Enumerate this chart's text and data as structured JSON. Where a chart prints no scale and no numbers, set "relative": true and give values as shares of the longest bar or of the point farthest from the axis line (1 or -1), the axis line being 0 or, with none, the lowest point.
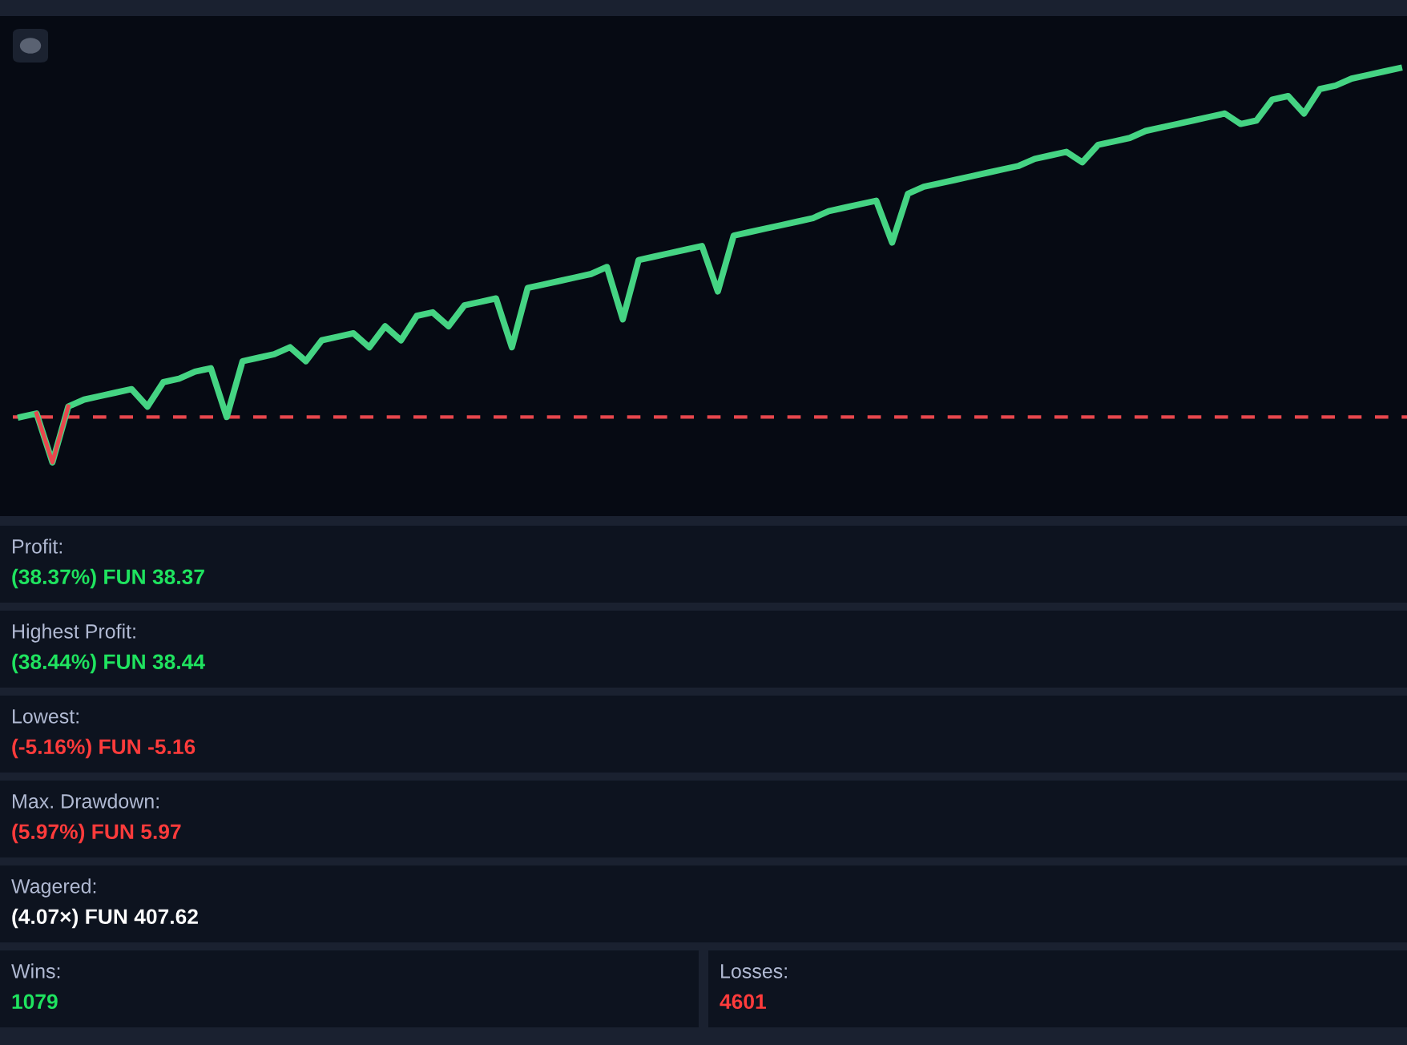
{
  "chart_data": [
    {
      "type": "line",
      "relative": true,
      "categories": [
        null,
        null,
        null,
        null,
        null,
        null,
        null,
        null,
        null,
        null,
        null,
        null,
        null,
        null,
        null,
        null,
        null,
        null,
        null,
        null,
        null,
        null,
        null,
        null,
        null,
        null,
        null,
        null,
        null,
        null,
        null,
        null,
        null,
        null,
        null,
        null,
        null,
        null,
        null,
        null,
        null,
        null,
        null,
        null,
        null,
        null,
        null,
        null,
        null,
        null,
        null,
        null,
        null,
        null,
        null,
        null,
        null,
        null,
        null,
        null,
        null,
        null,
        null,
        null,
        null,
        null,
        null,
        null,
        null,
        null,
        null,
        null,
        null,
        null,
        null,
        null,
        null,
        null,
        null,
        null,
        null,
        null,
        null,
        null,
        null,
        null,
        null,
        null
      ],
      "series": [
        {
          "color": "#45d483",
          "values": [
            0,
            0.01,
            -0.13,
            0.03,
            0.05,
            0.06,
            0.07,
            0.08,
            0.03,
            0.1,
            0.11,
            0.13,
            0.14,
            0.0,
            0.16,
            0.17,
            0.18,
            0.2,
            0.16,
            0.22,
            0.23,
            0.24,
            0.2,
            0.26,
            0.22,
            0.29,
            0.3,
            0.26,
            0.32,
            0.33,
            0.34,
            0.2,
            0.37,
            0.38,
            0.39,
            0.4,
            0.41,
            0.43,
            0.28,
            0.45,
            0.46,
            0.47,
            0.48,
            0.49,
            0.36,
            0.52,
            0.53,
            0.54,
            0.55,
            0.56,
            0.57,
            0.59,
            0.6,
            0.61,
            0.62,
            0.5,
            0.64,
            0.66,
            0.67,
            0.68,
            0.69,
            0.7,
            0.71,
            0.72,
            0.74,
            0.75,
            0.76,
            0.73,
            0.78,
            0.79,
            0.8,
            0.82,
            0.83,
            0.84,
            0.85,
            0.86,
            0.87,
            0.84,
            0.85,
            0.91,
            0.92,
            0.87,
            0.94,
            0.95,
            0.97,
            0.98,
            0.99,
            1
          ]
        },
        {
          "color": "#e8474d",
          "values": [
            null,
            0.01,
            -0.13,
            0.03,
            null,
            null,
            null,
            null,
            null,
            null,
            null,
            null,
            null,
            null,
            null,
            null,
            null,
            null,
            null,
            null,
            null,
            null,
            null,
            null,
            null,
            null,
            null,
            null,
            null,
            null,
            null,
            null,
            null,
            null,
            null,
            null,
            null,
            null,
            null,
            null,
            null,
            null,
            null,
            null,
            null,
            null,
            null,
            null,
            null,
            null,
            null,
            null,
            null,
            null,
            null,
            null,
            null,
            null,
            null,
            null,
            null,
            null,
            null,
            null,
            null,
            null,
            null,
            null,
            null,
            null,
            null,
            null,
            null,
            null,
            null,
            null,
            null,
            null,
            null,
            null,
            null,
            null,
            null,
            null,
            null,
            null,
            null,
            null
          ]
        }
      ],
      "ref_lines": [
        {
          "axis": "y",
          "value": 0,
          "color": "#e8474d",
          "line_style": "dashed"
        }
      ],
      "legend": false
    },
    {
      "type": "other",
      "annotations": [
        "Profit:",
        "(38.37%) FUN 38.37",
        "Highest Profit:",
        "(38.44%) FUN 38.44",
        "Lowest:",
        "(-5.16%) FUN -5.16",
        "Max. Drawdown:",
        "(5.97%) FUN 5.97",
        "Wagered:",
        "(4.07×) FUN 407.62",
        "Wins:",
        "1079",
        "Losses:",
        "4601"
      ],
      "colors": [
        "#b1bad3",
        "#1fe35f",
        "#b1bad3",
        "#1fe35f",
        "#b1bad3",
        "#ff3b3b",
        "#b1bad3",
        "#ff3b3b",
        "#b1bad3",
        "#ffffff",
        "#b1bad3",
        "#1fe35f",
        "#b1bad3",
        "#ff3b3b"
      ]
    }
  ]
}
